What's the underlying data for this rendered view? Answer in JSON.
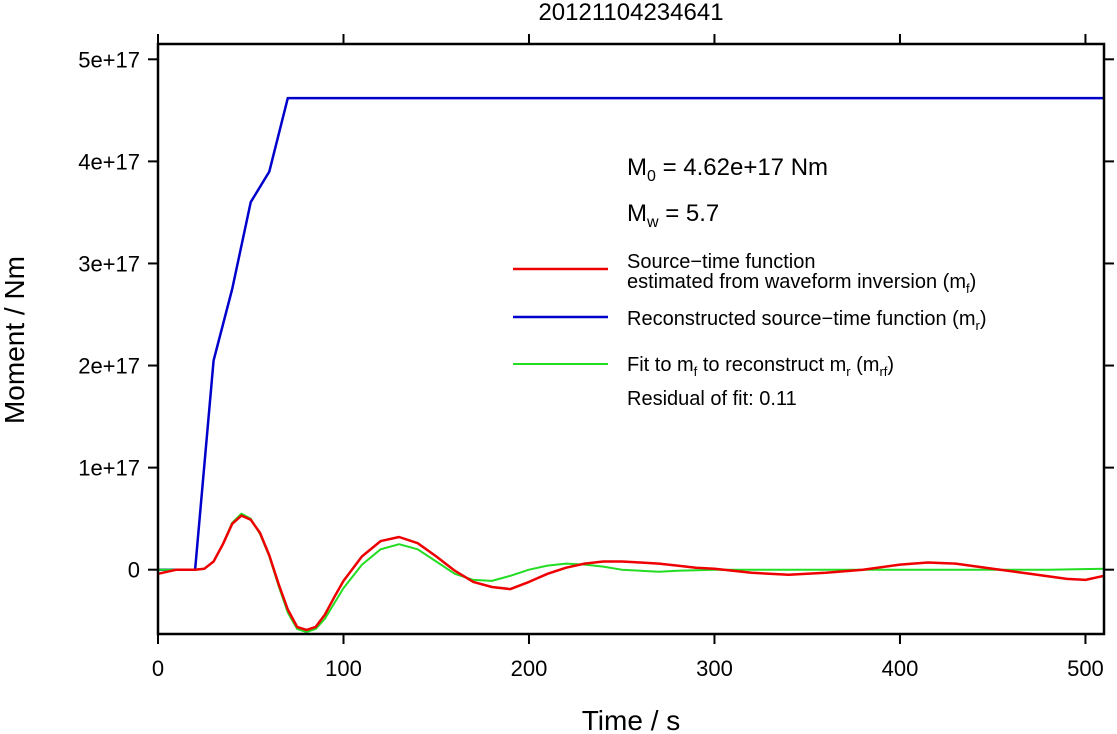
{
  "chart_data": {
    "type": "line",
    "title": "20121104234641",
    "xlabel": "Time / s",
    "ylabel": "Moment / Nm",
    "xlim": [
      0,
      510
    ],
    "ylim": [
      -6.3e+16,
      5.15e+17
    ],
    "xticks": [
      0,
      100,
      200,
      300,
      400,
      500
    ],
    "xtick_labels": [
      "0",
      "100",
      "200",
      "300",
      "400",
      "500"
    ],
    "yticks": [
      0,
      1e+17,
      2e+17,
      3e+17,
      4e+17,
      5e+17
    ],
    "ytick_labels": [
      "0",
      "1e+17",
      "2e+17",
      "3e+17",
      "4e+17",
      "5e+17"
    ],
    "grid": false,
    "legend_position": "right",
    "annotations": {
      "m0_prefix": "M",
      "m0_sub": "0",
      "m0_value": " = 4.62e+17 Nm",
      "mw_prefix": "M",
      "mw_sub": "w",
      "mw_value": " = 5.7",
      "residual": "Residual of fit: 0.11"
    },
    "legend": [
      {
        "key": "red",
        "line1": "Source−time function",
        "line2_pre": "estimated from waveform inversion (m",
        "line2_sub": "f",
        "line2_post": ")"
      },
      {
        "key": "blue",
        "line1_pre": "Reconstructed source−time function (m",
        "line1_sub": "r",
        "line1_post": ")"
      },
      {
        "key": "green",
        "line1_pre1": "Fit to m",
        "line1_sub1": "f",
        "line1_mid": " to reconstruct m",
        "line1_sub2": "r",
        "line1_mid2": " (m",
        "line1_sub3": "rf",
        "line1_post": ")"
      }
    ],
    "series": [
      {
        "key": "blue",
        "color": "#0000cc",
        "x": [
          0,
          20,
          30,
          40,
          50,
          60,
          70,
          510
        ],
        "y": [
          0,
          0,
          2.05e+17,
          2.75e+17,
          3.6e+17,
          3.9e+17,
          4.62e+17,
          4.62e+17
        ]
      },
      {
        "key": "red",
        "color": "#ee0000",
        "x": [
          0,
          10,
          20,
          25,
          30,
          35,
          40,
          45,
          50,
          55,
          60,
          65,
          70,
          75,
          80,
          85,
          90,
          95,
          100,
          110,
          120,
          130,
          140,
          150,
          160,
          170,
          180,
          190,
          200,
          210,
          220,
          230,
          240,
          250,
          260,
          270,
          280,
          290,
          300,
          320,
          340,
          360,
          380,
          400,
          415,
          430,
          450,
          470,
          490,
          500,
          510
        ],
        "y": [
          -4000000000000000.0,
          0,
          0,
          1000000000000000.0,
          8000000000000000.0,
          2.5e+16,
          4.5e+16,
          5.3e+16,
          4.9e+16,
          3.6e+16,
          1.4e+16,
          -1.4e+16,
          -3.9e+16,
          -5.6e+16,
          -5.9e+16,
          -5.6e+16,
          -4.4e+16,
          -2.7e+16,
          -1.1e+16,
          1.3e+16,
          2.8e+16,
          3.2e+16,
          2.6e+16,
          1.3e+16,
          -1000000000000000.0,
          -1.2e+16,
          -1.7e+16,
          -1.9e+16,
          -1.2e+16,
          -4000000000000000.0,
          2000000000000000.0,
          6000000000000000.0,
          8000000000000000.0,
          8000000000000000.0,
          7000000000000000.0,
          6000000000000000.0,
          4000000000000000.0,
          2000000000000000.0,
          1000000000000000.0,
          -3000000000000000.0,
          -5000000000000000.0,
          -3000000000000000.0,
          0,
          5000000000000000.0,
          7000000000000000.0,
          6000000000000000.0,
          1000000000000000.0,
          -4000000000000000.0,
          -9000000000000000.0,
          -1e+16,
          -6000000000000000.0
        ]
      },
      {
        "key": "green",
        "color": "#22dd22",
        "x": [
          0,
          10,
          20,
          25,
          30,
          35,
          40,
          45,
          50,
          55,
          60,
          65,
          70,
          75,
          80,
          85,
          90,
          95,
          100,
          110,
          120,
          130,
          140,
          150,
          160,
          170,
          180,
          190,
          200,
          210,
          220,
          230,
          240,
          250,
          260,
          270,
          280,
          300,
          330,
          360,
          400,
          450,
          480,
          510
        ],
        "y": [
          0,
          0,
          0,
          1000000000000000.0,
          8000000000000000.0,
          2.5e+16,
          4.6e+16,
          5.5e+16,
          5e+16,
          3.5e+16,
          1.3e+16,
          -1.6e+16,
          -4.2e+16,
          -5.8e+16,
          -6.1e+16,
          -5.8e+16,
          -4.8e+16,
          -3.3e+16,
          -1.8e+16,
          5000000000000000.0,
          2e+16,
          2.5e+16,
          2e+16,
          8000000000000000.0,
          -4000000000000000.0,
          -1e+16,
          -1.1e+16,
          -6000000000000000.0,
          0,
          4000000000000000.0,
          6000000000000000.0,
          5000000000000000.0,
          3000000000000000.0,
          0,
          -1000000000000000.0,
          -2000000000000000.0,
          -1000000000000000.0,
          0,
          0,
          0,
          0,
          0,
          0,
          1000000000000000.0
        ]
      }
    ]
  }
}
